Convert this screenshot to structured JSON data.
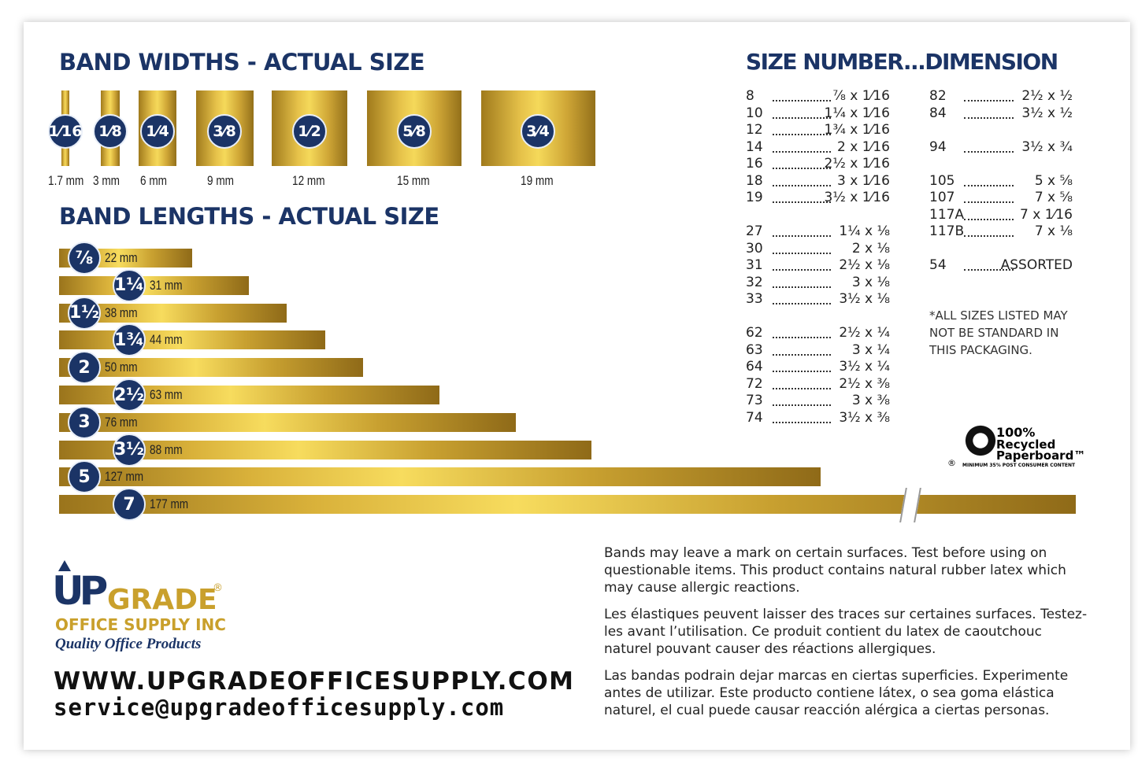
{
  "band_widths": {
    "title": "BAND WIDTHS - ACTUAL SIZE",
    "items": [
      {
        "size": "1⁄16",
        "mm": "1.7 mm"
      },
      {
        "size": "1⁄8",
        "mm": "3 mm"
      },
      {
        "size": "1⁄4",
        "mm": "6 mm"
      },
      {
        "size": "3⁄8",
        "mm": "9 mm"
      },
      {
        "size": "1⁄2",
        "mm": "12 mm"
      },
      {
        "size": "5⁄8",
        "mm": "15 mm"
      },
      {
        "size": "3⁄4",
        "mm": "19 mm"
      }
    ]
  },
  "band_lengths": {
    "title": "BAND LENGTHS - ACTUAL SIZE",
    "items": [
      {
        "size": "⅞",
        "mm": "22 mm"
      },
      {
        "size": "1¼",
        "mm": "31 mm"
      },
      {
        "size": "1½",
        "mm": "38 mm"
      },
      {
        "size": "1¾",
        "mm": "44 mm"
      },
      {
        "size": "2",
        "mm": "50 mm"
      },
      {
        "size": "2½",
        "mm": "63 mm"
      },
      {
        "size": "3",
        "mm": "76 mm"
      },
      {
        "size": "3½",
        "mm": "88 mm"
      },
      {
        "size": "5",
        "mm": "127 mm"
      },
      {
        "size": "7",
        "mm": "177 mm"
      }
    ]
  },
  "size_table": {
    "title": "SIZE NUMBER...DIMENSION",
    "left": [
      [
        {
          "number": "8",
          "dimension": "⅞ x 1⁄16"
        },
        {
          "number": "10",
          "dimension": "1¼ x 1⁄16"
        },
        {
          "number": "12",
          "dimension": "1¾ x 1⁄16"
        },
        {
          "number": "14",
          "dimension": "2 x 1⁄16"
        },
        {
          "number": "16",
          "dimension": "2½ x 1⁄16"
        },
        {
          "number": "18",
          "dimension": "3 x 1⁄16"
        },
        {
          "number": "19",
          "dimension": "3½ x 1⁄16"
        }
      ],
      [
        {
          "number": "27",
          "dimension": "1¼ x ⅛"
        },
        {
          "number": "30",
          "dimension": "2 x ⅛"
        },
        {
          "number": "31",
          "dimension": "2½ x ⅛"
        },
        {
          "number": "32",
          "dimension": "3 x ⅛"
        },
        {
          "number": "33",
          "dimension": "3½ x ⅛"
        }
      ],
      [
        {
          "number": "62",
          "dimension": "2½ x ¼"
        },
        {
          "number": "63",
          "dimension": "3 x ¼"
        },
        {
          "number": "64",
          "dimension": "3½ x ¼"
        },
        {
          "number": "72",
          "dimension": "2½ x ⅜"
        },
        {
          "number": "73",
          "dimension": "3 x ⅜"
        },
        {
          "number": "74",
          "dimension": "3½ x ⅜"
        }
      ]
    ],
    "right": [
      [
        {
          "number": "82",
          "dimension": "2½ x ½"
        },
        {
          "number": "84",
          "dimension": "3½ x ½"
        }
      ],
      [
        {
          "number": "94",
          "dimension": "3½ x ¾"
        }
      ],
      [
        {
          "number": "105",
          "dimension": "5 x ⅝"
        },
        {
          "number": "107",
          "dimension": "7 x ⅝"
        },
        {
          "number": "117A",
          "dimension": "7 x 1⁄16"
        },
        {
          "number": "117B",
          "dimension": "7 x ⅛"
        }
      ],
      [
        {
          "number": "54",
          "dimension": "ASSORTED"
        }
      ]
    ],
    "note": [
      "*ALL SIZES LISTED MAY",
      "NOT BE STANDARD IN",
      "THIS PACKAGING."
    ]
  },
  "recycled": {
    "percent": "100%",
    "line1": "Recycled",
    "line2": "Paperboard™",
    "sub": "MINIMUM 35% POST CONSUMER CONTENT",
    "mark": "®"
  },
  "brand": {
    "up": "UP",
    "grade": "GRADE",
    "registered": "®",
    "company": "OFFICE SUPPLY INC",
    "tagline": "Quality Office Products",
    "website": "WWW.UPGRADEOFFICESUPPLY.COM",
    "email": "service@upgradeofficesupply.com"
  },
  "warnings": [
    "Bands may leave a mark on certain surfaces. Test before using on questionable items. This product contains natural rubber latex which may cause allergic reactions.",
    "Les élastiques peuvent laisser des traces sur certaines surfaces. Testez-les avant l’utilisation. Ce produit contient du latex de caoutchouc naturel pouvant causer des réactions allergiques.",
    "Las bandas podrain dejar marcas en ciertas superficies. Experimente antes de utilizar. Este producto contiene látex, o sea goma elástica naturel, el cual puede causar reacción alérgica a ciertas personas."
  ]
}
